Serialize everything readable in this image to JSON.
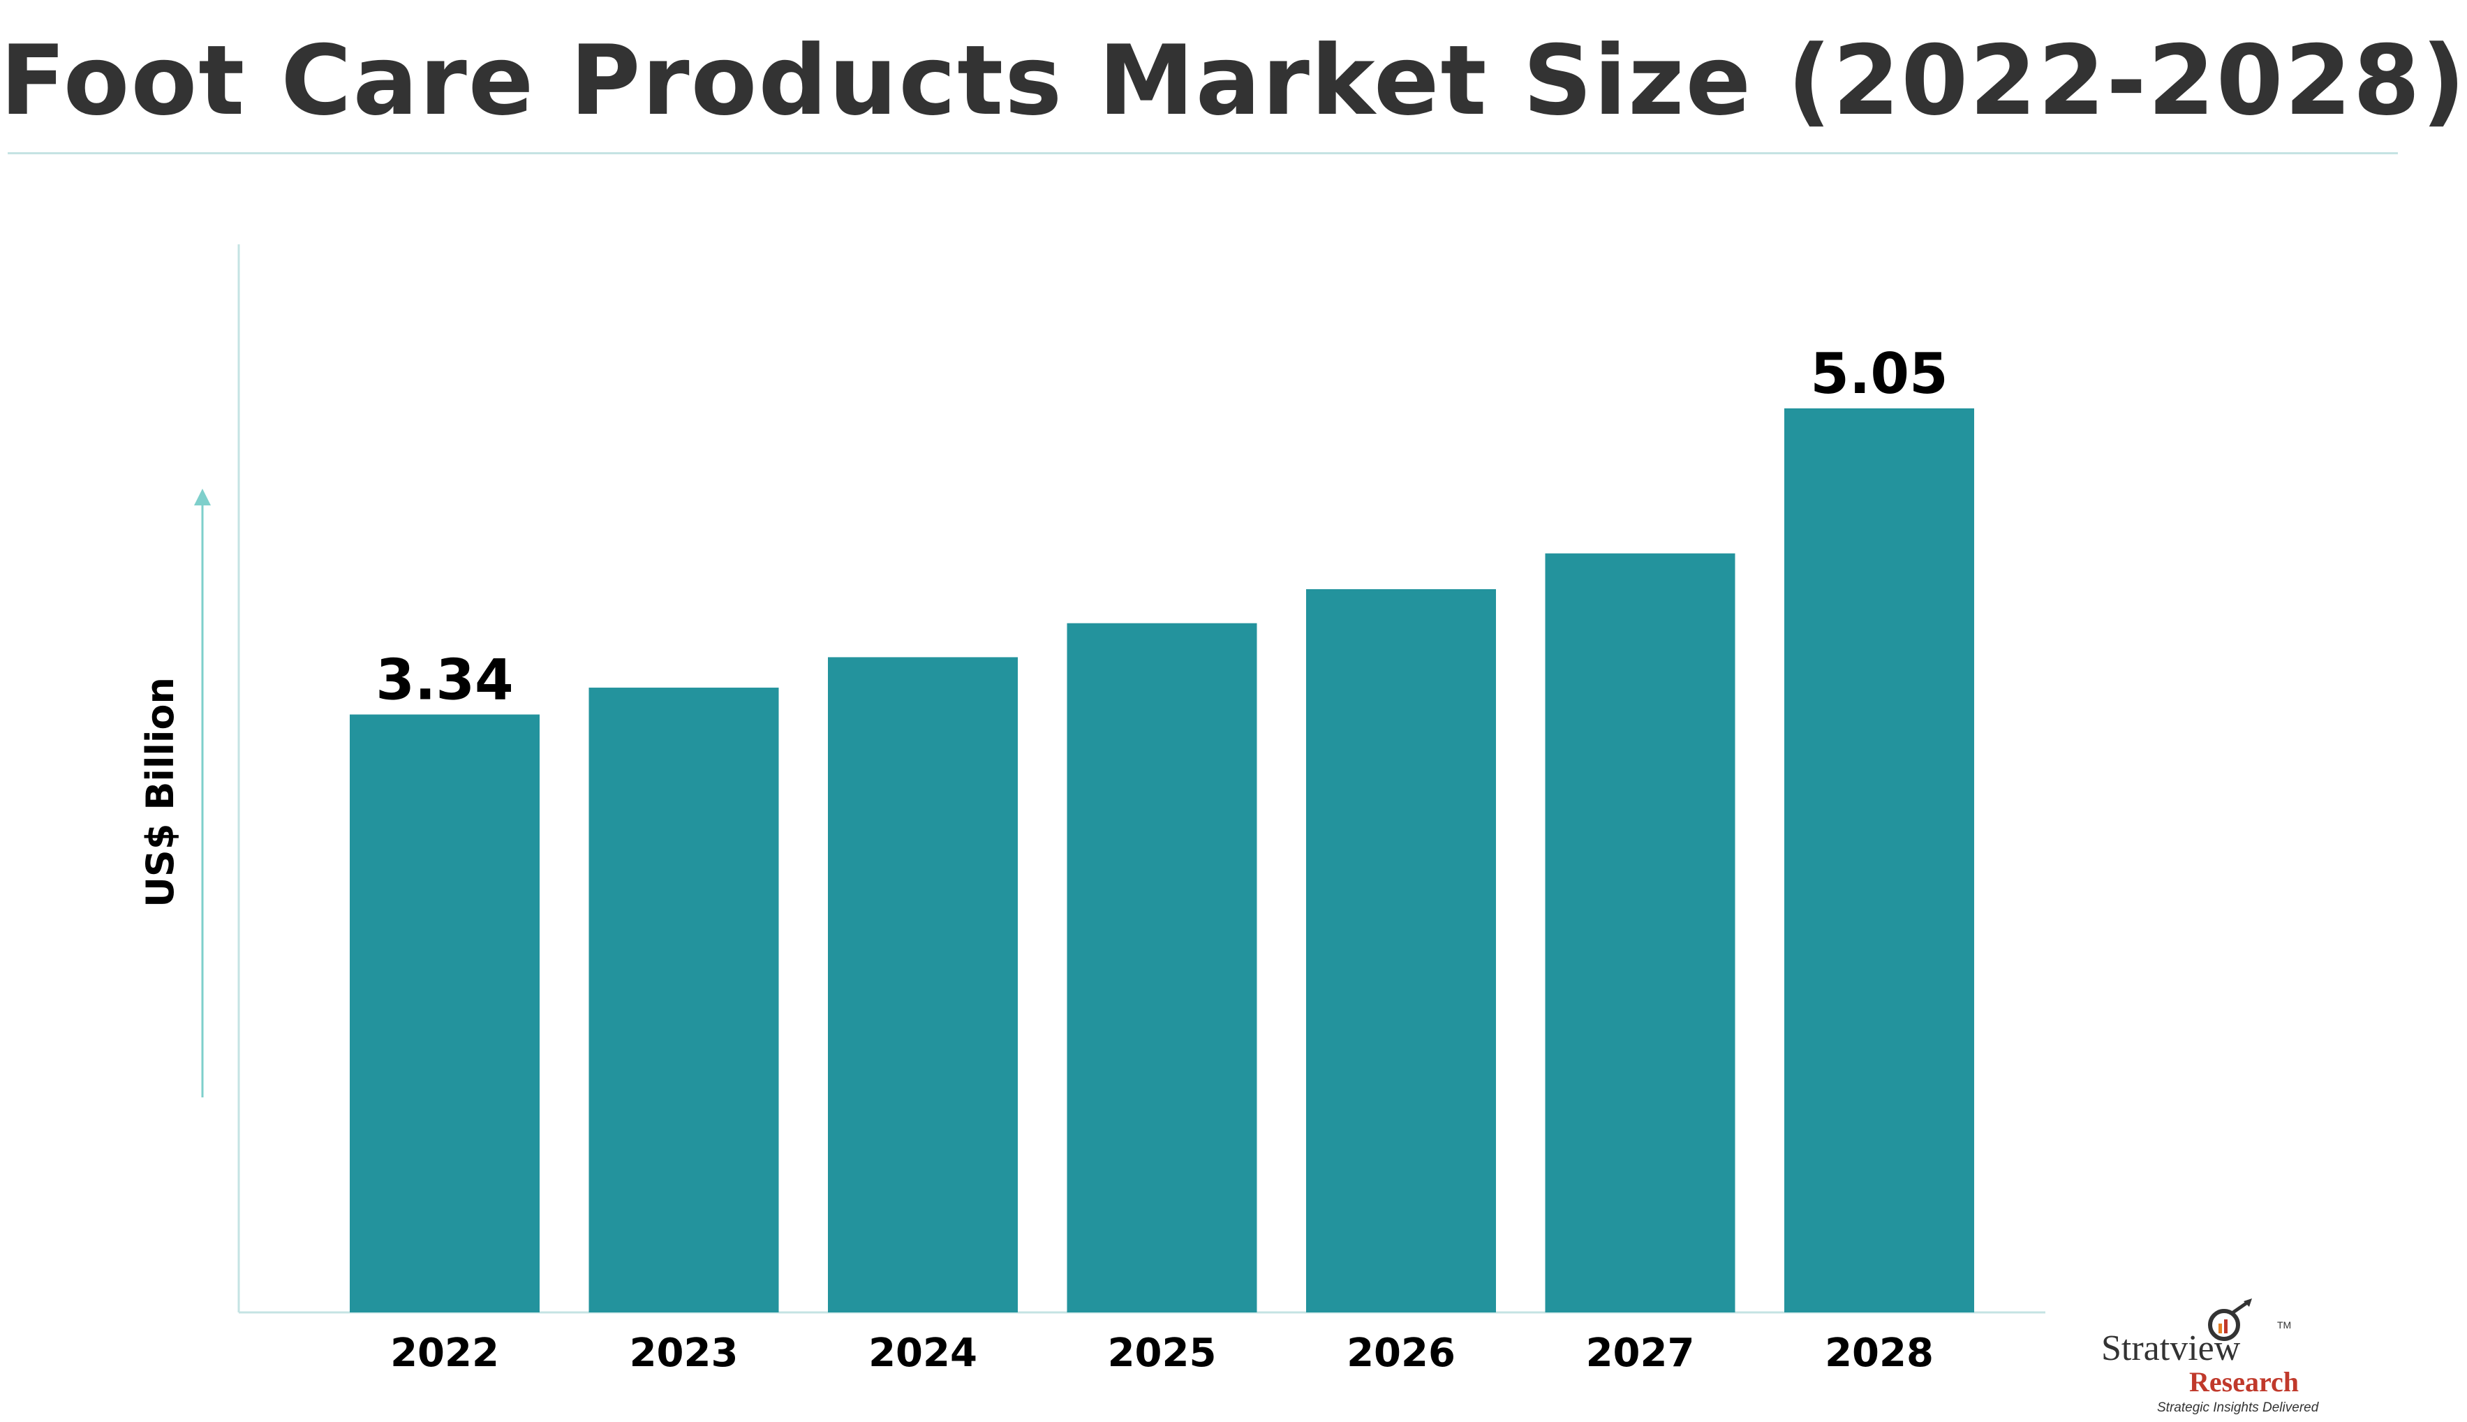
{
  "title": "Foot Care Products Market Size (2022-2028)",
  "colors": {
    "bar": "#23939d",
    "title": "#333333",
    "axis": "#c5e3e3",
    "arrow": "#7ecfcb",
    "label": "#000000"
  },
  "chart_data": {
    "type": "bar",
    "title": "Foot Care Products Market Size (2022-2028)",
    "ylabel": "US$ Billion",
    "xlabel": "",
    "categories": [
      "2022",
      "2023",
      "2024",
      "2025",
      "2026",
      "2027",
      "2028"
    ],
    "values": [
      3.34,
      3.49,
      3.66,
      3.85,
      4.04,
      4.24,
      5.05
    ],
    "data_labels": [
      {
        "category": "2022",
        "text": "3.34"
      },
      {
        "category": "2028",
        "text": "5.05"
      }
    ],
    "ylim": [
      0,
      5.05
    ],
    "grid": false,
    "legend": "none"
  },
  "logo": {
    "name": "Stratview",
    "sub": "Research",
    "tm": "TM",
    "tagline": "Strategic Insights Delivered"
  }
}
